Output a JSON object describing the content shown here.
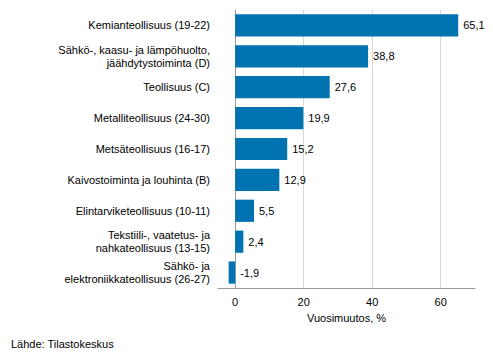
{
  "chart_data": {
    "type": "bar",
    "orientation": "horizontal",
    "categories": [
      "Kemianteollisuus (19-22)",
      "Sähkö-, kaasu- ja lämpöhuolto,\njäähdytystoiminta (D)",
      "Teollisuus (C)",
      "Metalliteollisuus (24-30)",
      "Metsäteollisuus (16-17)",
      "Kaivostoiminta ja louhinta (B)",
      "Elintarviketeollisuus (10-11)",
      "Tekstiili-, vaatetus- ja\nnahkateollisuus (13-15)",
      "Sähkö- ja\nelektroniikkateollisuus (26-27)"
    ],
    "values": [
      65.1,
      38.8,
      27.6,
      19.9,
      15.2,
      12.9,
      5.5,
      2.4,
      -1.9
    ],
    "value_labels": [
      "65,1",
      "38,8",
      "27,6",
      "19,9",
      "15,2",
      "12,9",
      "5,5",
      "2,4",
      "-1,9"
    ],
    "data_labels": true,
    "color": "#0073b0",
    "x_label": "Vuosimuutos, %",
    "xlim": [
      -5,
      70
    ],
    "xticks": [
      0,
      20,
      40,
      60
    ],
    "grid": true,
    "source": "Lähde: Tilastokeskus"
  }
}
